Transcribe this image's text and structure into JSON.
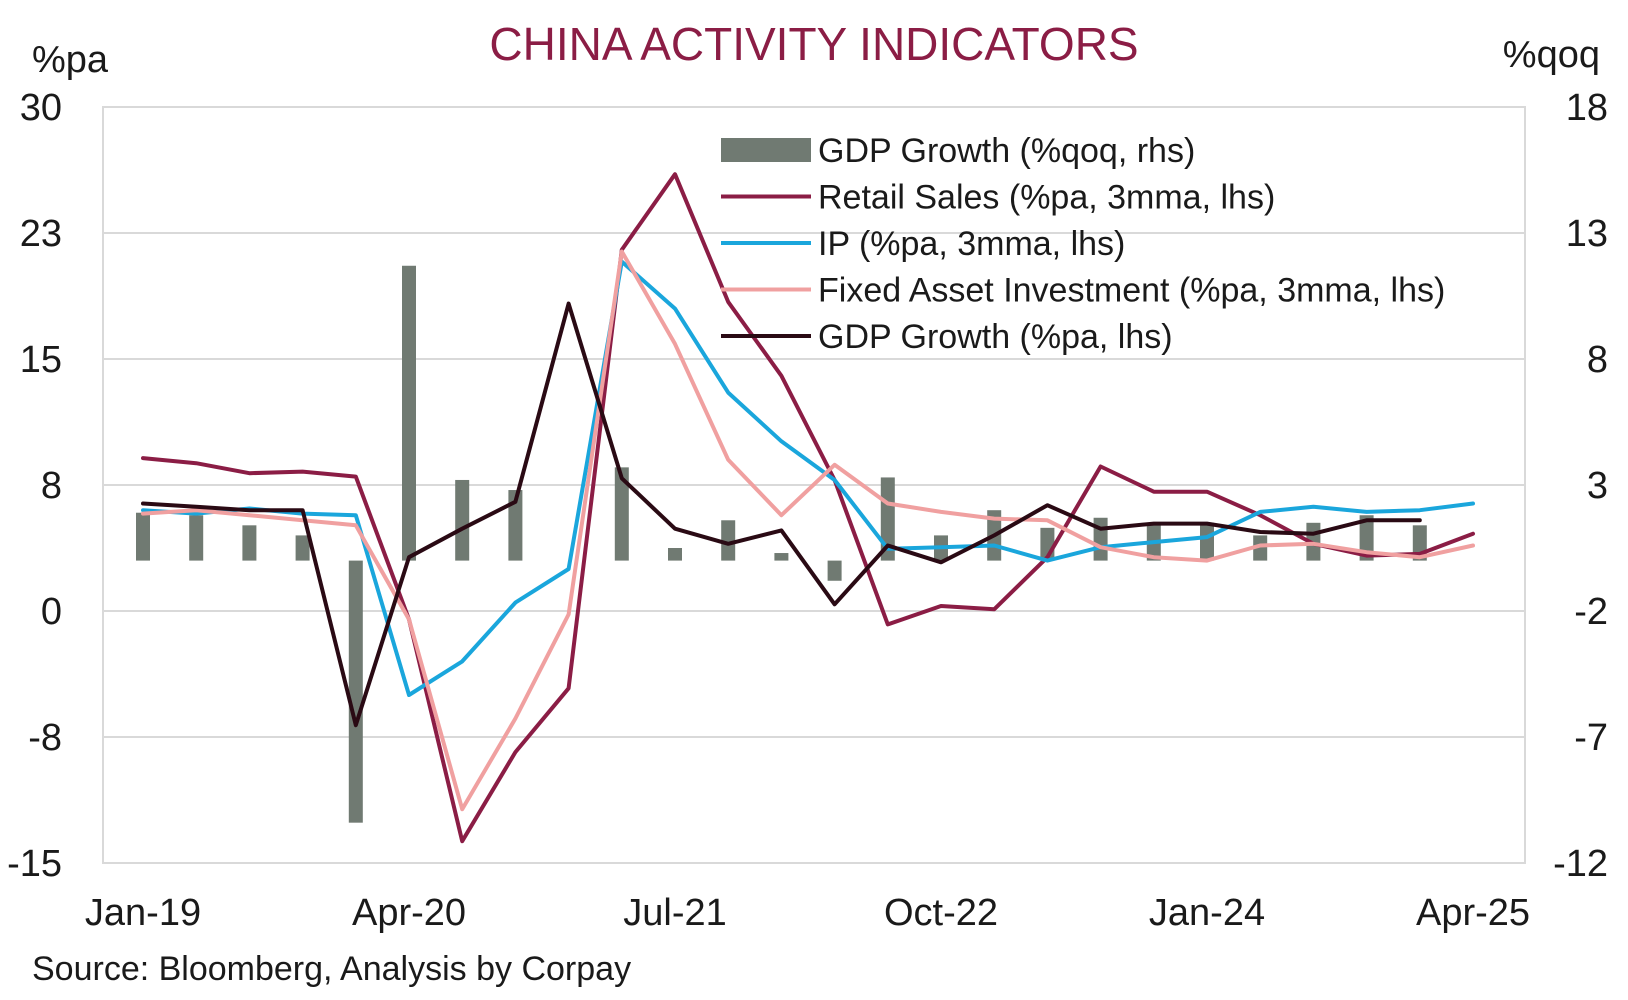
{
  "chart_data": {
    "type": "line",
    "title": "CHINA ACTIVITY INDICATORS",
    "ylabel_left": "%pa",
    "ylabel_right": "%qoq",
    "source": "Source: Bloomberg, Analysis by Corpay",
    "x_tick_labels": [
      "Jan-19",
      "Apr-20",
      "Jul-21",
      "Oct-22",
      "Jan-24",
      "Apr-25"
    ],
    "y_left_ticks": [
      "30",
      "23",
      "15",
      "8",
      "0",
      "-8",
      "-15"
    ],
    "y_right_ticks": [
      "18",
      "13",
      "8",
      "3",
      "-2",
      "-7",
      "-12"
    ],
    "ylim_left": [
      -15,
      30
    ],
    "ylim_right": [
      -12,
      18
    ],
    "grid": true,
    "legend_position": "top-right",
    "x": [
      "Jan-19",
      "Apr-19",
      "Jul-19",
      "Oct-19",
      "Jan-20",
      "Apr-20",
      "Jul-20",
      "Oct-20",
      "Jan-21",
      "Apr-21",
      "Jul-21",
      "Oct-21",
      "Jan-22",
      "Apr-22",
      "Jul-22",
      "Oct-22",
      "Jan-23",
      "Apr-23",
      "Jul-23",
      "Oct-23",
      "Jan-24",
      "Apr-24",
      "Jul-24",
      "Oct-24",
      "Jan-25",
      "Apr-25"
    ],
    "bars": {
      "name": "GDP Growth (%qoq, rhs)",
      "color": "#707a72",
      "values": [
        1.9,
        1.8,
        1.4,
        1.0,
        -10.4,
        11.7,
        3.2,
        2.8,
        null,
        3.7,
        0.5,
        1.6,
        0.3,
        -0.8,
        3.3,
        1.0,
        2.0,
        1.3,
        1.7,
        1.4,
        1.5,
        1.0,
        1.5,
        1.8,
        1.4,
        null
      ]
    },
    "series": [
      {
        "name": "Retail Sales (%pa, 3mma, lhs)",
        "color": "#8b1d45",
        "width": 4,
        "values": [
          9.1,
          8.8,
          8.2,
          8.3,
          8.0,
          -0.5,
          -13.7,
          -8.4,
          -4.6,
          21.5,
          26.0,
          18.4,
          14.0,
          7.8,
          -0.8,
          0.3,
          0.1,
          3.2,
          8.6,
          7.1,
          7.1,
          5.7,
          4.0,
          3.3,
          3.4,
          4.6
        ]
      },
      {
        "name": "IP (%pa, 3mma, lhs)",
        "color": "#1aa6dc",
        "width": 4,
        "values": [
          6.0,
          5.8,
          6.1,
          5.8,
          5.7,
          -5.0,
          -3.0,
          0.5,
          2.5,
          20.8,
          18.0,
          13.0,
          10.1,
          7.8,
          3.7,
          3.8,
          3.9,
          3.0,
          3.8,
          4.1,
          4.4,
          5.9,
          6.2,
          5.9,
          6.0,
          6.4
        ]
      },
      {
        "name": "Fixed Asset Investment (%pa, 3mma, lhs)",
        "color": "#f0a0a0",
        "width": 4,
        "values": [
          5.8,
          6.0,
          5.7,
          5.4,
          5.1,
          -0.5,
          -11.8,
          -6.4,
          -0.2,
          21.4,
          15.9,
          9.0,
          5.7,
          8.7,
          6.4,
          5.9,
          5.5,
          5.4,
          3.8,
          3.2,
          3.0,
          3.9,
          4.0,
          3.5,
          3.2,
          3.9
        ]
      },
      {
        "name": "GDP Growth (%pa, lhs)",
        "color": "#2a0a14",
        "width": 4,
        "values": [
          6.4,
          6.2,
          6.0,
          6.0,
          -6.8,
          3.2,
          4.9,
          6.5,
          18.3,
          7.9,
          4.9,
          4.0,
          4.8,
          0.4,
          3.9,
          2.9,
          4.5,
          6.3,
          4.9,
          5.2,
          5.2,
          4.7,
          4.6,
          5.4,
          5.4,
          null
        ]
      }
    ]
  }
}
